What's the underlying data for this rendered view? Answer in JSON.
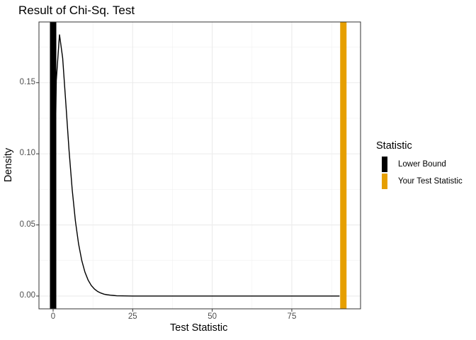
{
  "chart_data": {
    "type": "line",
    "title": "Result of Chi-Sq. Test",
    "xlabel": "Test Statistic",
    "ylabel": "Density",
    "xlim": [
      -4.45,
      96.6
    ],
    "ylim": [
      -0.009,
      0.1927
    ],
    "xticks": [
      0,
      25,
      50,
      75
    ],
    "xtick_labels": [
      "0",
      "25",
      "50",
      "75"
    ],
    "yticks": [
      0,
      0.05,
      0.1,
      0.15
    ],
    "ytick_labels": [
      "0.00",
      "0.05",
      "0.10",
      "0.15"
    ],
    "grid": true,
    "density_curve": {
      "x": [
        0,
        1,
        2,
        3,
        4,
        5,
        6,
        7,
        8,
        9,
        10,
        11,
        12,
        13,
        14,
        15,
        16,
        17,
        18,
        19,
        20,
        25,
        30,
        40,
        50,
        60,
        70,
        80,
        90
      ],
      "y": [
        0,
        0.1516,
        0.1839,
        0.1673,
        0.1353,
        0.1026,
        0.0747,
        0.0528,
        0.0366,
        0.025,
        0.0168,
        0.0112,
        0.0074,
        0.0049,
        0.0032,
        0.0021,
        0.0013,
        0.0009,
        0.0006,
        0.0004,
        0.0002,
        0,
        0,
        0,
        0,
        0,
        0,
        0,
        0
      ],
      "color": "#000000"
    },
    "vlines": [
      {
        "name": "Lower Bound",
        "x": 0,
        "color": "#000000"
      },
      {
        "name": "Your Test Statistic",
        "x": 91.2,
        "color": "#E69F00"
      }
    ],
    "legend": {
      "title": "Statistic",
      "position": "right"
    }
  }
}
